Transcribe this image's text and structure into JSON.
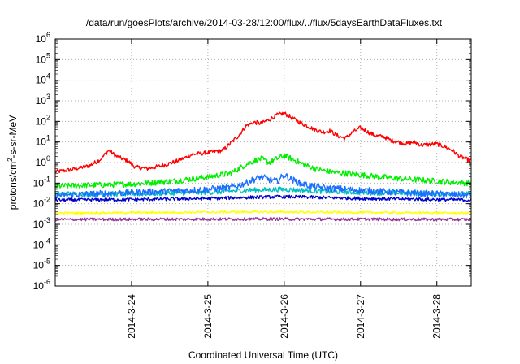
{
  "chart_data": {
    "type": "line",
    "title": "/data/run/goesPlots/archive/2014-03-28/12:00/flux/../flux/5daysEarthDataFluxes.txt",
    "xlabel": "Coordinated Universal Time (UTC)",
    "ylabel_parts": [
      "protons/cm",
      "2",
      "-s-sr-MeV"
    ],
    "yscale": "log",
    "ylim_exponents": [
      -6,
      6
    ],
    "y_tick_base": "10",
    "y_tick_exponents": [
      "-6",
      "-5",
      "-4",
      "-3",
      "-2",
      "-1",
      "0",
      "1",
      "2",
      "3",
      "4",
      "5",
      "6"
    ],
    "x_range_days": [
      -0.0,
      5.45
    ],
    "x_ticks": [
      {
        "label": "2014-3-24",
        "day": 1.0
      },
      {
        "label": "2014-3-25",
        "day": 2.0
      },
      {
        "label": "2014-3-26",
        "day": 3.0
      },
      {
        "label": "2014-3-27",
        "day": 4.0
      },
      {
        "label": "2014-3-28",
        "day": 5.0
      }
    ],
    "grid": true,
    "series": [
      {
        "color": "#ff0000",
        "noise": 0.1,
        "points": [
          [
            0,
            0.35
          ],
          [
            0.2,
            0.45
          ],
          [
            0.45,
            0.7
          ],
          [
            0.6,
            1.5
          ],
          [
            0.7,
            4
          ],
          [
            0.8,
            2
          ],
          [
            0.95,
            1.2
          ],
          [
            1.05,
            0.6
          ],
          [
            1.2,
            0.5
          ],
          [
            1.4,
            0.7
          ],
          [
            1.6,
            1.2
          ],
          [
            1.8,
            2.5
          ],
          [
            2.0,
            3
          ],
          [
            2.2,
            4
          ],
          [
            2.4,
            20
          ],
          [
            2.5,
            60
          ],
          [
            2.6,
            90
          ],
          [
            2.7,
            80
          ],
          [
            2.8,
            120
          ],
          [
            2.9,
            200
          ],
          [
            3.0,
            250
          ],
          [
            3.1,
            150
          ],
          [
            3.2,
            90
          ],
          [
            3.3,
            60
          ],
          [
            3.4,
            40
          ],
          [
            3.5,
            30
          ],
          [
            3.6,
            35
          ],
          [
            3.7,
            20
          ],
          [
            3.8,
            15
          ],
          [
            3.9,
            30
          ],
          [
            4.0,
            50
          ],
          [
            4.1,
            30
          ],
          [
            4.2,
            20
          ],
          [
            4.3,
            18
          ],
          [
            4.4,
            12
          ],
          [
            4.6,
            8
          ],
          [
            4.7,
            10
          ],
          [
            4.8,
            7
          ],
          [
            5.0,
            8
          ],
          [
            5.1,
            6
          ],
          [
            5.2,
            4
          ],
          [
            5.3,
            2
          ],
          [
            5.45,
            1.2
          ]
        ]
      },
      {
        "color": "#00ee00",
        "noise": 0.14,
        "points": [
          [
            0,
            0.07
          ],
          [
            0.5,
            0.08
          ],
          [
            1.0,
            0.09
          ],
          [
            1.5,
            0.12
          ],
          [
            2.0,
            0.2
          ],
          [
            2.3,
            0.3
          ],
          [
            2.5,
            0.8
          ],
          [
            2.6,
            1.2
          ],
          [
            2.7,
            1.5
          ],
          [
            2.8,
            1.0
          ],
          [
            2.9,
            1.5
          ],
          [
            3.0,
            2.2
          ],
          [
            3.1,
            1.5
          ],
          [
            3.2,
            1.0
          ],
          [
            3.4,
            0.5
          ],
          [
            3.6,
            0.35
          ],
          [
            3.8,
            0.3
          ],
          [
            4.0,
            0.25
          ],
          [
            4.4,
            0.18
          ],
          [
            4.8,
            0.14
          ],
          [
            5.2,
            0.11
          ],
          [
            5.45,
            0.1
          ]
        ]
      },
      {
        "color": "#00bfbf",
        "noise": 0.12,
        "points": [
          [
            0,
            0.03
          ],
          [
            1.0,
            0.03
          ],
          [
            2.0,
            0.035
          ],
          [
            2.5,
            0.045
          ],
          [
            3.0,
            0.05
          ],
          [
            3.5,
            0.04
          ],
          [
            4.0,
            0.035
          ],
          [
            5.0,
            0.03
          ],
          [
            5.45,
            0.03
          ]
        ]
      },
      {
        "color": "#1c6eff",
        "noise": 0.16,
        "points": [
          [
            0,
            0.025
          ],
          [
            0.5,
            0.03
          ],
          [
            1.0,
            0.035
          ],
          [
            1.5,
            0.04
          ],
          [
            2.0,
            0.05
          ],
          [
            2.3,
            0.06
          ],
          [
            2.5,
            0.1
          ],
          [
            2.6,
            0.15
          ],
          [
            2.7,
            0.2
          ],
          [
            2.8,
            0.15
          ],
          [
            2.9,
            0.12
          ],
          [
            3.0,
            0.25
          ],
          [
            3.1,
            0.15
          ],
          [
            3.2,
            0.1
          ],
          [
            3.3,
            0.08
          ],
          [
            3.5,
            0.06
          ],
          [
            3.8,
            0.05
          ],
          [
            4.0,
            0.045
          ],
          [
            4.5,
            0.035
          ],
          [
            5.0,
            0.03
          ],
          [
            5.45,
            0.025
          ]
        ]
      },
      {
        "color": "#0000cc",
        "noise": 0.08,
        "points": [
          [
            0,
            0.015
          ],
          [
            1.0,
            0.016
          ],
          [
            2.0,
            0.018
          ],
          [
            2.5,
            0.02
          ],
          [
            3.0,
            0.022
          ],
          [
            3.5,
            0.02
          ],
          [
            4.0,
            0.018
          ],
          [
            5.0,
            0.016
          ],
          [
            5.45,
            0.015
          ]
        ]
      },
      {
        "color": "#ffff00",
        "noise": 0.05,
        "points": [
          [
            0,
            0.0035
          ],
          [
            2.7,
            0.004
          ],
          [
            5.45,
            0.0035
          ]
        ]
      },
      {
        "color": "#993399",
        "noise": 0.07,
        "points": [
          [
            0,
            0.0017
          ],
          [
            2.7,
            0.0018
          ],
          [
            5.45,
            0.0017
          ]
        ]
      }
    ]
  }
}
